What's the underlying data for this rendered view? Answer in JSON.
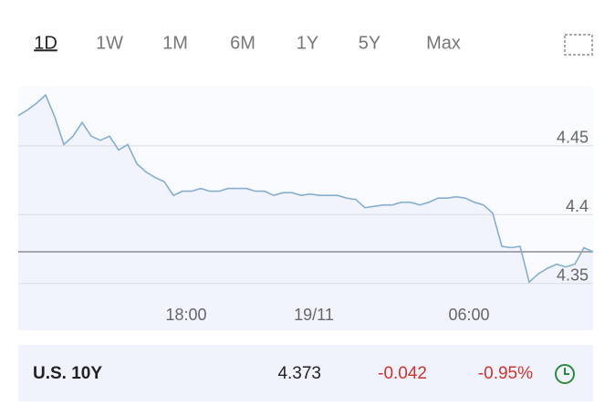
{
  "tabs": [
    "1D",
    "1W",
    "1M",
    "6M",
    "1Y",
    "5Y",
    "Max"
  ],
  "selected_tab": 0,
  "chart_data": {
    "type": "line",
    "categories": [
      null,
      null,
      null,
      null,
      null,
      null,
      null,
      null,
      null,
      null,
      null,
      null,
      null,
      null,
      null,
      null,
      null,
      null,
      "18:00",
      null,
      null,
      null,
      null,
      null,
      null,
      null,
      null,
      null,
      null,
      null,
      null,
      null,
      "19/11",
      null,
      null,
      null,
      null,
      null,
      null,
      null,
      null,
      null,
      null,
      null,
      null,
      null,
      null,
      null,
      null,
      "06:00",
      null,
      null,
      null,
      null,
      null,
      null,
      null,
      null,
      null,
      null,
      null,
      null,
      null,
      null
    ],
    "values": [
      4.472,
      4.476,
      4.481,
      4.487,
      4.471,
      4.451,
      4.457,
      4.467,
      4.457,
      4.454,
      4.457,
      4.447,
      4.451,
      4.437,
      4.431,
      4.427,
      4.424,
      4.414,
      4.417,
      4.417,
      4.419,
      4.417,
      4.417,
      4.419,
      4.419,
      4.419,
      4.417,
      4.417,
      4.414,
      4.416,
      4.416,
      4.414,
      4.415,
      4.414,
      4.414,
      4.414,
      4.412,
      4.411,
      4.405,
      4.406,
      4.407,
      4.407,
      4.409,
      4.409,
      4.407,
      4.409,
      4.412,
      4.412,
      4.413,
      4.412,
      4.409,
      4.407,
      4.401,
      4.377,
      4.376,
      4.377,
      4.351,
      4.357,
      4.361,
      4.364,
      4.362,
      4.364,
      4.376,
      4.373
    ],
    "color": "#86aed3",
    "ylim": [
      4.316,
      4.493
    ],
    "yticks": [
      4.35,
      4.4,
      4.45
    ],
    "grid": true
  },
  "quote": {
    "name": "U.S. 10Y",
    "price": 4.373,
    "change": -0.042,
    "change_pct": "-0.95%"
  }
}
